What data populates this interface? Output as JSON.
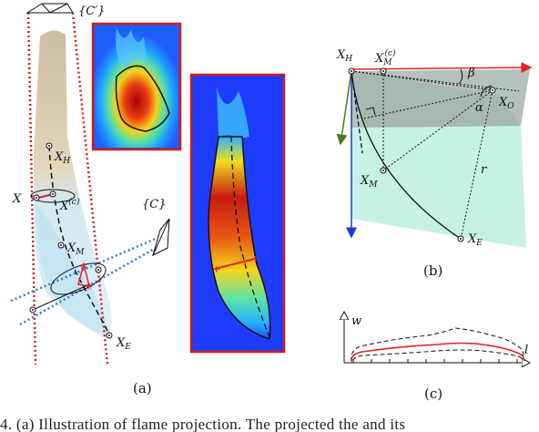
{
  "labels": {
    "cprime": "{C′}",
    "c": "{C}",
    "xh_a": "X",
    "xh_a_sub": "H",
    "x": "X",
    "xc": "X",
    "xc_sup": "(c)",
    "xm_a": "X",
    "xm_a_sub": "M",
    "xe_a": "X",
    "xe_a_sub": "E",
    "xh_b": "X",
    "xh_b_sub": "H",
    "xmc_b": "X",
    "xmc_b_sub": "M",
    "xmc_b_sup": "(c)",
    "beta": "β",
    "alpha": "α",
    "xo_b": "X",
    "xo_b_sub": "O",
    "xm_b": "X",
    "xm_b_sub": "M",
    "r": "r",
    "xe_b": "X",
    "xe_b_sub": "E",
    "w": "w",
    "l": "l"
  },
  "captions": {
    "a": "(a)",
    "b": "(b)",
    "c": "(c)"
  },
  "caption_line": "4.  (a) Illustration of flame projection. The projected the and its"
}
